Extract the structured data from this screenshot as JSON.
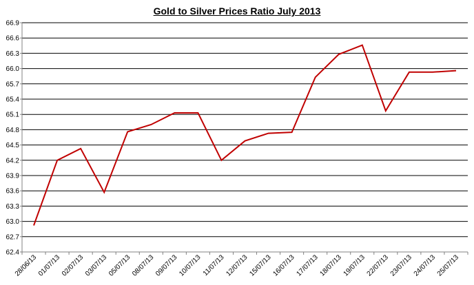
{
  "chart_data": {
    "type": "line",
    "title": "Gold to Silver Prices Ratio July  2013",
    "xlabel": "",
    "ylabel": "",
    "categories": [
      "28/06/13",
      "01/07/13",
      "02/07/13",
      "03/07/13",
      "05/07/13",
      "08/07/13",
      "09/07/13",
      "10/07/13",
      "11/07/13",
      "12/07/13",
      "15/07/13",
      "16/07/13",
      "17/07/13",
      "18/07/13",
      "19/07/13",
      "22/07/13",
      "23/07/13",
      "24/07/13",
      "25/07/13"
    ],
    "series": [
      {
        "values": [
          62.92,
          64.2,
          64.43,
          63.57,
          64.76,
          64.9,
          65.13,
          65.13,
          64.2,
          64.58,
          64.73,
          64.75,
          65.83,
          66.28,
          66.46,
          65.17,
          65.93,
          65.93,
          65.96
        ]
      }
    ],
    "ylim": [
      62.4,
      66.9
    ],
    "yticks": [
      "62.4",
      "62.7",
      "63.0",
      "63.3",
      "63.6",
      "63.9",
      "64.2",
      "64.5",
      "64.8",
      "65.1",
      "65.4",
      "65.7",
      "66.0",
      "66.3",
      "66.6",
      "66.9"
    ],
    "grid": true,
    "legend": "none",
    "colors": {
      "line": "#c00000",
      "grid": "#000000",
      "axis": "#808080"
    }
  }
}
